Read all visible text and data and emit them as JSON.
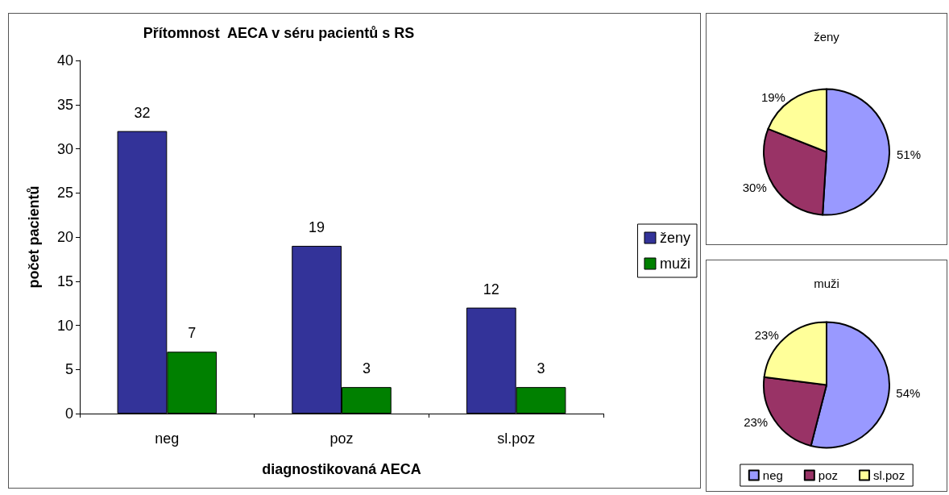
{
  "chart_data": [
    {
      "type": "bar",
      "title": "Přítomnost  AECA v séru pacientů s RS",
      "xlabel": "diagnostikovaná AECA",
      "ylabel": "počet pacientů",
      "categories": [
        "neg",
        "poz",
        "sl.poz"
      ],
      "series": [
        {
          "name": "ženy",
          "color": "#333399",
          "values": [
            32,
            19,
            12
          ]
        },
        {
          "name": "muži",
          "color": "#008000",
          "values": [
            7,
            3,
            3
          ]
        }
      ],
      "ylim": [
        0,
        40
      ],
      "yticks": [
        0,
        5,
        10,
        15,
        20,
        25,
        30,
        35,
        40
      ],
      "grid": false,
      "legend": "right",
      "data_labels": true
    },
    {
      "type": "pie",
      "title": "ženy",
      "categories": [
        null,
        null,
        null
      ],
      "values": [
        51,
        30,
        19
      ],
      "value_labels": [
        "51%",
        "30%",
        "19%"
      ],
      "colors": [
        "#9999ff",
        "#993366",
        "#ffff99"
      ],
      "legend": false
    },
    {
      "type": "pie",
      "title": "muži",
      "categories": [
        "neg",
        "poz",
        "sl.poz"
      ],
      "values": [
        54,
        23,
        23
      ],
      "value_labels": [
        "54%",
        "23%",
        "23%"
      ],
      "colors": [
        "#9999ff",
        "#993366",
        "#ffff99"
      ],
      "legend": "bottom"
    }
  ]
}
